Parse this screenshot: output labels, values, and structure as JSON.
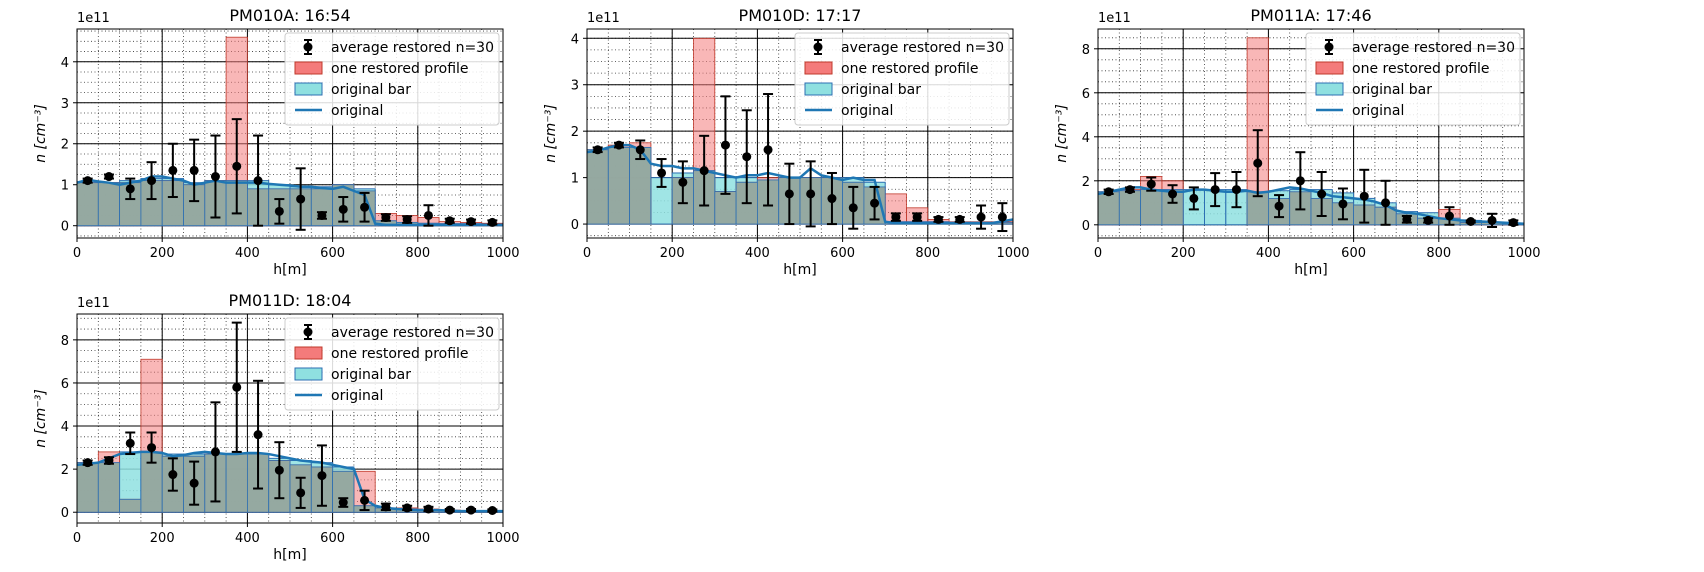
{
  "figure": {
    "legend_labels": {
      "avg": "average restored n=30",
      "restored": "one restored profile",
      "bar": "original bar",
      "line": "original"
    },
    "colors": {
      "restored_fill": "#f47b7b",
      "restored_edge": "#c0392b",
      "bar_fill": "#8fe0e0",
      "bar_edge": "#2c6fb3",
      "overlap_fill": "#8fa8a0",
      "line": "#1f77b4",
      "avg": "#000000"
    }
  },
  "chart_data": [
    {
      "type": "bar",
      "title": "PM010A: 16:54",
      "xlabel": "h[m]",
      "ylabel": "n [cm⁻³]",
      "y_multiplier": "1e11",
      "xlim": [
        0,
        1000
      ],
      "ylim": [
        -0.3,
        4.8
      ],
      "xticks": [
        0,
        200,
        400,
        600,
        800,
        1000
      ],
      "yticks": [
        0,
        1,
        2,
        3,
        4
      ],
      "legend_position": "upper-right",
      "grid": true,
      "bin_width": 50,
      "bin_start": 0,
      "original_bar": [
        1.05,
        1.05,
        1.1,
        1.15,
        1.15,
        1.05,
        1.1,
        1.1,
        1.1,
        1.0,
        0.95,
        0.95,
        1.0,
        0.9,
        0.12,
        0.08,
        0.06,
        0.05,
        0.05,
        0.04
      ],
      "restored_profile": [
        1.05,
        1.05,
        1.05,
        1.1,
        1.1,
        1.0,
        1.1,
        4.6,
        0.9,
        0.9,
        0.9,
        0.9,
        1.0,
        0.85,
        0.3,
        0.25,
        0.2,
        0.1,
        0.08,
        0.06
      ],
      "avg_x": [
        25,
        75,
        125,
        175,
        225,
        275,
        325,
        375,
        425,
        475,
        525,
        575,
        625,
        675,
        725,
        775,
        825,
        875,
        925,
        975
      ],
      "avg_y": [
        1.1,
        1.2,
        0.9,
        1.1,
        1.35,
        1.35,
        1.2,
        1.45,
        1.1,
        0.35,
        0.65,
        0.25,
        0.4,
        0.45,
        0.2,
        0.15,
        0.25,
        0.12,
        0.1,
        0.08
      ],
      "avg_err": [
        0.05,
        0.05,
        0.25,
        0.45,
        0.65,
        0.75,
        1.0,
        1.15,
        1.1,
        0.3,
        0.75,
        0.08,
        0.3,
        0.35,
        0.08,
        0.08,
        0.25,
        0.05,
        0.05,
        0.05
      ],
      "original_line_x": [
        0,
        25,
        50,
        75,
        100,
        125,
        150,
        175,
        200,
        225,
        250,
        275,
        300,
        325,
        350,
        375,
        400,
        425,
        450,
        475,
        500,
        525,
        550,
        575,
        600,
        625,
        650,
        675,
        700,
        725,
        750,
        800,
        850,
        900,
        950,
        1000
      ],
      "original_line_y": [
        1.05,
        1.12,
        1.08,
        1.05,
        1.0,
        1.05,
        1.1,
        1.2,
        1.2,
        1.15,
        1.1,
        1.0,
        1.05,
        1.1,
        1.05,
        1.05,
        1.05,
        1.05,
        1.02,
        1.0,
        0.98,
        0.95,
        0.95,
        0.92,
        0.9,
        0.95,
        0.85,
        0.75,
        0.05,
        0.02,
        0.02,
        0.02,
        0.02,
        0.02,
        0.02,
        0.02
      ]
    },
    {
      "type": "bar",
      "title": "PM010D: 17:17",
      "xlabel": "h[m]",
      "ylabel": "n [cm⁻³]",
      "y_multiplier": "1e11",
      "xlim": [
        0,
        1000
      ],
      "ylim": [
        -0.3,
        4.2
      ],
      "xticks": [
        0,
        200,
        400,
        600,
        800,
        1000
      ],
      "yticks": [
        0,
        1,
        2,
        3,
        4
      ],
      "legend_position": "upper-right",
      "grid": true,
      "bin_width": 50,
      "bin_start": 0,
      "original_bar": [
        1.6,
        1.65,
        1.65,
        1.0,
        1.1,
        1.15,
        1.0,
        1.0,
        0.95,
        1.0,
        1.0,
        1.0,
        1.0,
        0.9,
        0.05,
        0.05,
        0.05,
        0.04,
        0.04,
        0.03
      ],
      "restored_profile": [
        1.6,
        1.7,
        1.75,
        0.0,
        1.0,
        4.0,
        0.7,
        0.9,
        1.0,
        1.0,
        1.0,
        1.0,
        0.9,
        0.8,
        0.65,
        0.35,
        0.1,
        0.05,
        0.05,
        0.05
      ],
      "avg_x": [
        25,
        75,
        125,
        175,
        225,
        275,
        325,
        375,
        425,
        475,
        525,
        575,
        625,
        675,
        725,
        775,
        825,
        875,
        925,
        975
      ],
      "avg_y": [
        1.6,
        1.7,
        1.6,
        1.1,
        0.9,
        1.15,
        1.7,
        1.45,
        1.6,
        0.65,
        0.65,
        0.55,
        0.35,
        0.45,
        0.15,
        0.15,
        0.1,
        0.1,
        0.15,
        0.15
      ],
      "avg_err": [
        0.05,
        0.05,
        0.2,
        0.3,
        0.45,
        0.75,
        1.05,
        1.0,
        1.2,
        0.65,
        0.7,
        0.55,
        0.45,
        0.35,
        0.08,
        0.08,
        0.05,
        0.05,
        0.25,
        0.3
      ],
      "original_line_x": [
        0,
        25,
        50,
        75,
        100,
        125,
        150,
        175,
        200,
        225,
        250,
        275,
        300,
        325,
        350,
        375,
        400,
        425,
        450,
        475,
        500,
        525,
        550,
        575,
        600,
        625,
        650,
        675,
        700,
        725,
        750,
        800,
        850,
        900,
        950,
        1000
      ],
      "original_line_y": [
        1.55,
        1.58,
        1.65,
        1.7,
        1.7,
        1.6,
        1.3,
        1.25,
        1.25,
        1.2,
        1.2,
        1.15,
        1.1,
        1.05,
        1.0,
        1.05,
        1.05,
        1.1,
        1.05,
        1.0,
        1.0,
        1.2,
        1.05,
        1.0,
        0.95,
        1.0,
        0.95,
        0.95,
        0.05,
        0.02,
        0.02,
        0.02,
        0.02,
        0.02,
        0.02,
        0.1
      ]
    },
    {
      "type": "bar",
      "title": "PM011A: 17:46",
      "xlabel": "h[m]",
      "ylabel": "n [cm⁻³]",
      "y_multiplier": "1e11",
      "xlim": [
        0,
        1000
      ],
      "ylim": [
        -0.6,
        8.9
      ],
      "xticks": [
        0,
        200,
        400,
        600,
        800,
        1000
      ],
      "yticks": [
        0,
        2,
        4,
        6,
        8
      ],
      "legend_position": "upper-right",
      "grid": true,
      "bin_width": 50,
      "bin_start": 0,
      "original_bar": [
        1.5,
        1.55,
        1.6,
        1.6,
        1.6,
        1.6,
        1.6,
        1.5,
        1.55,
        1.6,
        1.6,
        1.45,
        1.2,
        1.0,
        0.6,
        0.55,
        0.3,
        0.2,
        0.1,
        0.05
      ],
      "restored_profile": [
        1.5,
        1.6,
        2.2,
        2.0,
        0.0,
        0.0,
        0.0,
        8.5,
        1.2,
        1.5,
        1.2,
        1.0,
        0.9,
        0.8,
        0.5,
        0.3,
        0.7,
        0.1,
        0.1,
        0.05
      ],
      "avg_x": [
        25,
        75,
        125,
        175,
        225,
        275,
        325,
        375,
        425,
        475,
        525,
        575,
        625,
        675,
        725,
        775,
        825,
        875,
        925,
        975
      ],
      "avg_y": [
        1.5,
        1.6,
        1.85,
        1.4,
        1.2,
        1.6,
        1.6,
        2.8,
        0.85,
        2.0,
        1.4,
        0.95,
        1.3,
        1.0,
        0.25,
        0.2,
        0.4,
        0.15,
        0.2,
        0.1
      ],
      "avg_err": [
        0.1,
        0.1,
        0.3,
        0.4,
        0.5,
        0.75,
        0.8,
        1.5,
        0.5,
        1.3,
        1.0,
        0.7,
        1.2,
        1.0,
        0.15,
        0.1,
        0.4,
        0.05,
        0.3,
        0.1
      ],
      "original_line_x": [
        0,
        25,
        50,
        75,
        100,
        125,
        150,
        175,
        200,
        225,
        250,
        275,
        300,
        325,
        350,
        375,
        400,
        425,
        450,
        475,
        500,
        525,
        550,
        575,
        600,
        625,
        650,
        675,
        700,
        725,
        750,
        800,
        850,
        900,
        950,
        1000
      ],
      "original_line_y": [
        1.4,
        1.5,
        1.6,
        1.7,
        1.7,
        1.6,
        1.55,
        1.5,
        1.5,
        1.6,
        1.6,
        1.55,
        1.5,
        1.5,
        1.55,
        1.45,
        1.5,
        1.6,
        1.7,
        1.65,
        1.55,
        1.45,
        1.3,
        1.25,
        1.2,
        1.15,
        1.05,
        0.9,
        0.65,
        0.55,
        0.5,
        0.3,
        0.2,
        0.15,
        0.1,
        0.05
      ]
    },
    {
      "type": "bar",
      "title": "PM011D: 18:04",
      "xlabel": "h[m]",
      "ylabel": "n [cm⁻³]",
      "y_multiplier": "1e11",
      "xlim": [
        0,
        1000
      ],
      "ylim": [
        -0.5,
        9.2
      ],
      "xticks": [
        0,
        200,
        400,
        600,
        800,
        1000
      ],
      "yticks": [
        0,
        2,
        4,
        6,
        8
      ],
      "legend_position": "upper-right",
      "grid": true,
      "bin_width": 50,
      "bin_start": 0,
      "original_bar": [
        2.3,
        2.3,
        2.8,
        2.8,
        2.7,
        2.7,
        2.7,
        2.7,
        2.7,
        2.5,
        2.4,
        2.3,
        2.1,
        0.3,
        0.2,
        0.15,
        0.1,
        0.08,
        0.05,
        0.05
      ],
      "restored_profile": [
        2.3,
        2.8,
        0.6,
        7.1,
        2.6,
        2.6,
        2.7,
        2.7,
        2.7,
        2.4,
        2.2,
        2.1,
        1.9,
        1.9,
        0.2,
        0.2,
        0.15,
        0.1,
        0.08,
        0.05
      ],
      "avg_x": [
        25,
        75,
        125,
        175,
        225,
        275,
        325,
        375,
        425,
        475,
        525,
        575,
        625,
        675,
        725,
        775,
        825,
        875,
        925,
        975
      ],
      "avg_y": [
        2.3,
        2.4,
        3.2,
        3.0,
        1.75,
        1.35,
        2.8,
        5.8,
        3.6,
        1.95,
        0.9,
        1.7,
        0.45,
        0.55,
        0.25,
        0.2,
        0.15,
        0.1,
        0.1,
        0.08
      ],
      "avg_err": [
        0.1,
        0.15,
        0.5,
        0.7,
        0.75,
        1.0,
        2.3,
        3.0,
        2.5,
        1.3,
        0.7,
        1.4,
        0.2,
        0.45,
        0.15,
        0.1,
        0.1,
        0.05,
        0.05,
        0.05
      ],
      "original_line_x": [
        0,
        25,
        50,
        75,
        100,
        125,
        150,
        175,
        200,
        225,
        250,
        275,
        300,
        325,
        350,
        375,
        400,
        425,
        450,
        475,
        500,
        525,
        550,
        575,
        600,
        625,
        650,
        675,
        700,
        725,
        750,
        800,
        850,
        900,
        950,
        1000
      ],
      "original_line_y": [
        2.2,
        2.25,
        2.3,
        2.5,
        2.7,
        2.75,
        2.8,
        2.8,
        2.75,
        2.6,
        2.65,
        2.75,
        2.8,
        2.75,
        2.7,
        2.7,
        2.75,
        2.75,
        2.7,
        2.6,
        2.5,
        2.4,
        2.35,
        2.3,
        2.2,
        2.1,
        2.0,
        0.6,
        0.3,
        0.2,
        0.15,
        0.1,
        0.1,
        0.05,
        0.05,
        0.05
      ]
    }
  ]
}
